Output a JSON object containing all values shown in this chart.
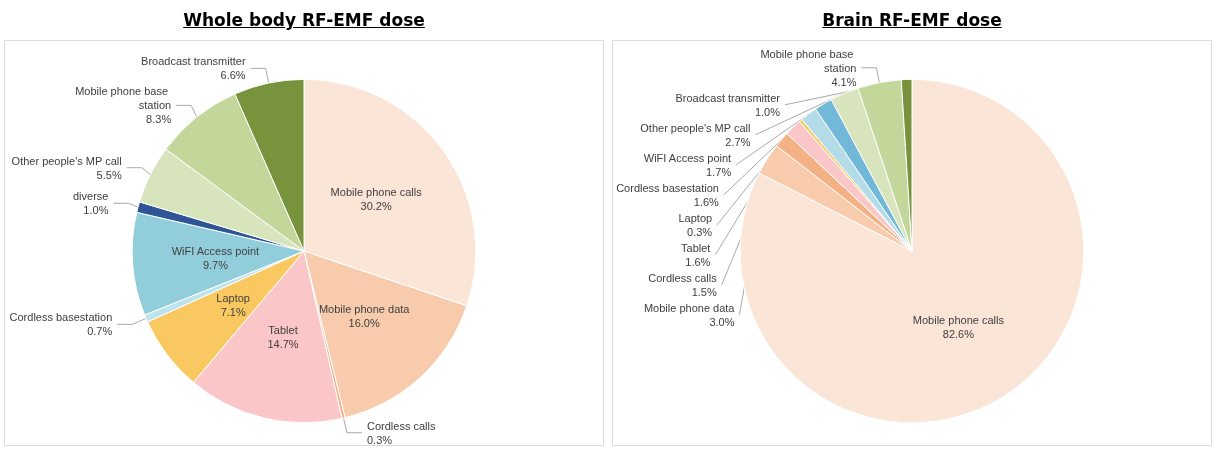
{
  "chart_data": [
    {
      "type": "pie",
      "title": "Whole body RF-EMF dose",
      "categories": [
        "Mobile phone calls",
        "Mobile phone data",
        "Cordless calls",
        "Tablet",
        "Laptop",
        "Cordless basestation",
        "WiFI Access point",
        "diverse",
        "Other people's MP call",
        "Mobile phone base station",
        "Broadcast transmitter"
      ],
      "values": [
        30.2,
        16.0,
        0.3,
        14.7,
        7.1,
        0.7,
        9.7,
        1.0,
        5.5,
        8.3,
        6.6
      ],
      "value_labels": [
        "30.2%",
        "16.0%",
        "0.3%",
        "14.7%",
        "7.1%",
        "0.7%",
        "9.7%",
        "1.0%",
        "5.5%",
        "8.3%",
        "6.6%"
      ],
      "colors": [
        "#fbe5d6",
        "#f8cbad",
        "#f4b183",
        "#fbc6c8",
        "#fac860",
        "#bde3ec",
        "#92cddc",
        "#2f5597",
        "#d8e4bc",
        "#c4d79b",
        "#77933c"
      ]
    },
    {
      "type": "pie",
      "title": "Brain RF-EMF dose",
      "categories": [
        "Mobile phone calls",
        "Mobile phone data",
        "Cordless calls",
        "Tablet",
        "Laptop",
        "Cordless basestation",
        "WiFI Access point",
        "Other people's MP call",
        "Mobile phone base station",
        "Broadcast transmitter"
      ],
      "values": [
        82.6,
        3.0,
        1.5,
        1.6,
        0.3,
        1.6,
        1.7,
        2.7,
        4.1,
        1.0
      ],
      "value_labels": [
        "82.6%",
        "3.0%",
        "1.5%",
        "1.6%",
        "0.3%",
        "1.6%",
        "1.7%",
        "2.7%",
        "4.1%",
        "1.0%"
      ],
      "colors": [
        "#fbe5d6",
        "#f8cbad",
        "#f4b183",
        "#fbc6c8",
        "#fac860",
        "#b4dce8",
        "#72b8d8",
        "#d8e4bc",
        "#c4d79b",
        "#77933c"
      ]
    }
  ]
}
